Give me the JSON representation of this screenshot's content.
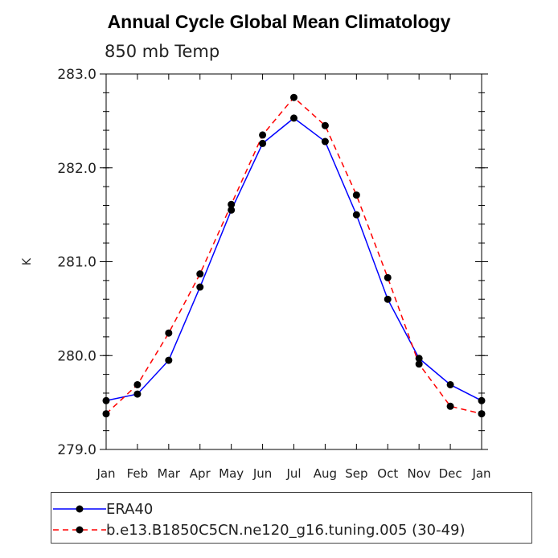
{
  "chart_data": {
    "type": "line",
    "title": "Annual Cycle Global Mean Climatology",
    "subtitle": "850 mb Temp",
    "ylabel": "K",
    "xlabel": "",
    "categories": [
      "Jan",
      "Feb",
      "Mar",
      "Apr",
      "May",
      "Jun",
      "Jul",
      "Aug",
      "Sep",
      "Oct",
      "Nov",
      "Dec",
      "Jan"
    ],
    "ylim": [
      279.0,
      283.0
    ],
    "yticks": [
      "279.0",
      "280.0",
      "281.0",
      "282.0",
      "283.0"
    ],
    "grid": false,
    "legend_position": "bottom",
    "series": [
      {
        "name": "ERA40",
        "color": "#0000ff",
        "style": "solid",
        "values": [
          279.52,
          279.59,
          279.95,
          280.73,
          281.55,
          282.26,
          282.53,
          282.28,
          281.5,
          280.6,
          279.97,
          279.69,
          279.52
        ]
      },
      {
        "name": "b.e13.B1850C5CN.ne120_g16.tuning.005 (30-49)",
        "color": "#ff0000",
        "style": "dashed",
        "values": [
          279.38,
          279.69,
          280.24,
          280.87,
          281.61,
          282.35,
          282.75,
          282.45,
          281.71,
          280.83,
          279.91,
          279.46,
          279.38
        ]
      }
    ]
  }
}
